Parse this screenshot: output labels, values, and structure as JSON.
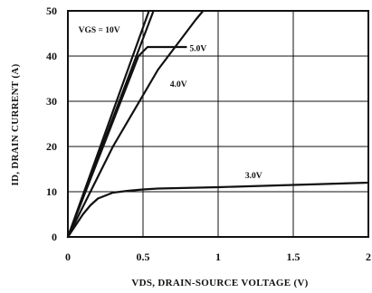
{
  "chart_data": {
    "type": "line",
    "title": "",
    "xlabel": "VDS, DRAIN-SOURCE VOLTAGE (V)",
    "ylabel": "ID, DRAIN CURRENT (A)",
    "xlim": [
      0,
      2
    ],
    "ylim": [
      0,
      50
    ],
    "x_ticks": [
      "0",
      "0.5",
      "1",
      "1.5",
      "2"
    ],
    "y_ticks": [
      "0",
      "10",
      "20",
      "30",
      "40",
      "50"
    ],
    "grid": true,
    "series": [
      {
        "name": "VGS = 10V",
        "points": [
          [
            0,
            0
          ],
          [
            0.57,
            50
          ]
        ]
      },
      {
        "name": "",
        "points": [
          [
            0,
            0
          ],
          [
            0.54,
            50
          ]
        ]
      },
      {
        "name": "5.0V",
        "points": [
          [
            0,
            0
          ],
          [
            0.47,
            40
          ],
          [
            0.53,
            42
          ],
          [
            0.8,
            42
          ]
        ]
      },
      {
        "name": "4.0V",
        "points": [
          [
            0,
            0
          ],
          [
            0.3,
            20
          ],
          [
            0.6,
            37
          ],
          [
            0.85,
            48
          ],
          [
            0.9,
            50
          ]
        ]
      },
      {
        "name": "3.0V",
        "points": [
          [
            0,
            0
          ],
          [
            0.05,
            2.5
          ],
          [
            0.1,
            5
          ],
          [
            0.15,
            7
          ],
          [
            0.2,
            8.5
          ],
          [
            0.3,
            9.8
          ],
          [
            0.4,
            10.2
          ],
          [
            0.5,
            10.5
          ],
          [
            0.6,
            10.7
          ],
          [
            1.0,
            11
          ],
          [
            1.5,
            11.5
          ],
          [
            2.0,
            12
          ]
        ]
      }
    ],
    "annotations": [
      {
        "text": "VGS = 10V",
        "x": 0.07,
        "y": 45.2
      },
      {
        "text": "5.0V",
        "x": 0.81,
        "y": 41.1
      },
      {
        "text": "4.0V",
        "x": 0.68,
        "y": 33.2
      },
      {
        "text": "3.0V",
        "x": 1.18,
        "y": 13.0
      }
    ]
  }
}
